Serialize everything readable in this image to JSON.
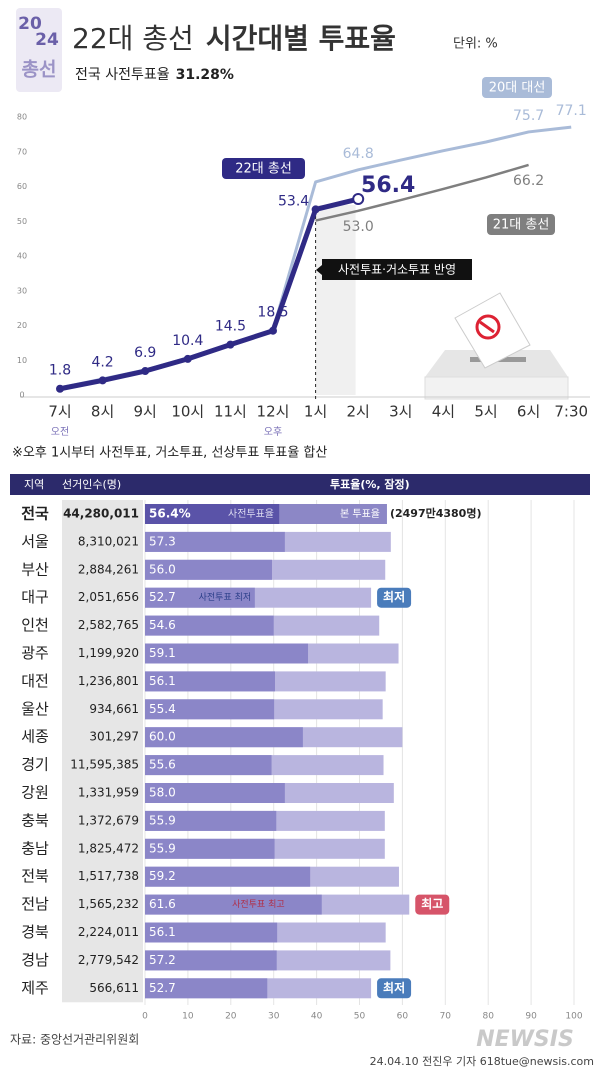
{
  "header": {
    "logo": [
      "20",
      "24",
      "총선"
    ],
    "title_main": "22대 총선",
    "title_bold": "시간대별 투표율",
    "unit": "단위: %",
    "subtitle_main": "전국 사전투표율",
    "subtitle_bold": "31.28%"
  },
  "chart_data": [
    {
      "type": "line",
      "categories": [
        "7시",
        "8시",
        "9시",
        "10시",
        "11시",
        "12시",
        "1시",
        "2시",
        "3시",
        "4시",
        "5시",
        "6시",
        "7:30"
      ],
      "x_sublabels": [
        "오전",
        null,
        null,
        null,
        null,
        "오후",
        null,
        null,
        null,
        null,
        null,
        null,
        null
      ],
      "ylim": [
        0,
        80
      ],
      "yticks": [
        0,
        10,
        20,
        30,
        40,
        50,
        60,
        70,
        80
      ],
      "grid": false,
      "annotation": "사전투표·거소투표 반영",
      "series": [
        {
          "name": "20대 대선",
          "color": "#a9bbd8",
          "values": [
            2.1,
            4.6,
            7.2,
            10.7,
            14.7,
            18.7,
            61.3,
            64.8,
            67.6,
            70.3,
            72.8,
            75.7,
            77.1
          ],
          "value_labels": [
            null,
            null,
            null,
            null,
            null,
            null,
            null,
            "64.8",
            null,
            null,
            null,
            "75.7",
            "77.1"
          ]
        },
        {
          "name": "21대 총선",
          "color": "#7f7f7f",
          "values": [
            null,
            null,
            null,
            null,
            null,
            null,
            50.2,
            53.0,
            56.1,
            59.3,
            62.6,
            66.2,
            null
          ],
          "value_labels": [
            null,
            null,
            null,
            null,
            null,
            null,
            null,
            "53.0",
            null,
            null,
            null,
            "66.2",
            null
          ]
        },
        {
          "name": "22대 총선",
          "color": "#2f2a85",
          "values": [
            1.8,
            4.2,
            6.9,
            10.4,
            14.5,
            18.5,
            53.4,
            56.4,
            null,
            null,
            null,
            null,
            null
          ],
          "value_labels": [
            "1.8",
            "4.2",
            "6.9",
            "10.4",
            "14.5",
            "18.5",
            "53.4",
            "56.4",
            null,
            null,
            null,
            null,
            null
          ]
        }
      ]
    },
    {
      "type": "bar",
      "orientation": "horizontal",
      "note": "※오후 1시부터 사전투표, 거소투표, 선상투표 투표율 합산",
      "columns": [
        "지역",
        "선거인수(명)",
        "투표율(%, 잠정)"
      ],
      "categories": [
        "전국",
        "서울",
        "부산",
        "대구",
        "인천",
        "광주",
        "대전",
        "울산",
        "세종",
        "경기",
        "강원",
        "충북",
        "충남",
        "전북",
        "전남",
        "경북",
        "경남",
        "제주"
      ],
      "electors": [
        "44,280,011",
        "8,310,021",
        "2,884,261",
        "2,051,656",
        "2,582,765",
        "1,199,920",
        "1,236,801",
        "934,661",
        "301,297",
        "11,595,385",
        "1,331,959",
        "1,372,679",
        "1,825,472",
        "1,517,738",
        "1,565,232",
        "2,224,011",
        "2,779,542",
        "566,611"
      ],
      "values": [
        56.4,
        57.3,
        56.0,
        52.7,
        54.6,
        59.1,
        56.1,
        55.4,
        60.0,
        55.6,
        58.0,
        55.9,
        55.9,
        59.2,
        61.6,
        56.1,
        57.2,
        52.7
      ],
      "value_labels": [
        "56.4%",
        "57.3",
        "56.0",
        "52.7",
        "54.6",
        "59.1",
        "56.1",
        "55.4",
        "60.0",
        "55.6",
        "58.0",
        "55.9",
        "55.9",
        "59.2",
        "61.6",
        "56.1",
        "57.2",
        "52.7"
      ],
      "early_values": [
        31.28,
        32.6,
        29.6,
        25.6,
        30.0,
        38.0,
        30.3,
        30.1,
        36.8,
        29.5,
        32.6,
        30.6,
        30.2,
        38.5,
        41.2,
        30.8,
        30.7,
        28.5
      ],
      "national_labels": {
        "early": "사전투표율",
        "main": "본 투표율",
        "count": "(2497만4380명)"
      },
      "badges": [
        {
          "row": 3,
          "text": "최저",
          "note": "사전투표 최저",
          "color": "#4a7cbb"
        },
        {
          "row": 14,
          "text": "최고",
          "note": "사전투표 최고",
          "color": "#d65469"
        },
        {
          "row": 17,
          "text": "최저",
          "note": null,
          "color": "#4a7cbb"
        }
      ],
      "colors": {
        "bar": "#b9b5df",
        "early": "#8b86c8",
        "national_bar": "#8c87c6",
        "national_early": "#5a53a8",
        "header": "#2c2a6b"
      },
      "xlim": [
        0,
        100
      ],
      "xticks": [
        0,
        10,
        20,
        30,
        40,
        50,
        60,
        70,
        80,
        90,
        100
      ],
      "grid": true
    }
  ],
  "footer": {
    "source": "자료: 중앙선거관리위원회",
    "brand": "NEWSIS",
    "credit": "24.04.10 전진우 기자 618tue@newsis.com"
  }
}
